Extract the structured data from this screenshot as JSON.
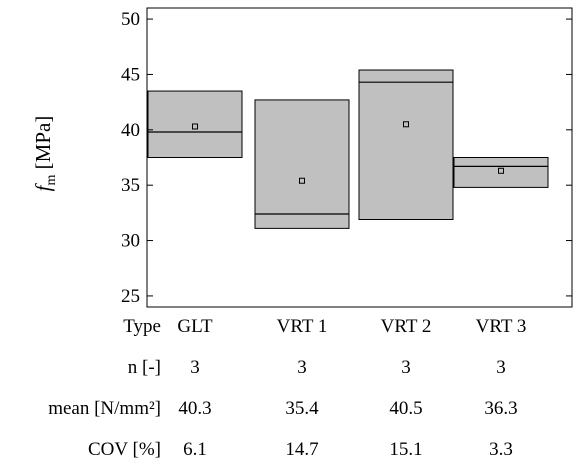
{
  "chart_data": {
    "type": "box",
    "ylabel_symbol": "f",
    "ylabel_subscript": "m",
    "ylabel_unit": "[MPa]",
    "ylim": [
      24,
      51
    ],
    "yticks": [
      25,
      30,
      35,
      40,
      45,
      50
    ],
    "categories": [
      "GLT",
      "VRT 1",
      "VRT 2",
      "VRT 3"
    ],
    "boxes": [
      {
        "min": 37.5,
        "median": 39.8,
        "max": 43.5,
        "mean": 40.3
      },
      {
        "min": 31.1,
        "median": 32.4,
        "max": 42.7,
        "mean": 35.4
      },
      {
        "min": 31.9,
        "median": 44.3,
        "max": 45.4,
        "mean": 40.5
      },
      {
        "min": 34.8,
        "median": 36.7,
        "max": 37.5,
        "mean": 36.3
      }
    ],
    "box_fill": "#c0c0c0",
    "table": {
      "row_labels": [
        "Type",
        "n [-]",
        "mean [N/mm²]",
        "COV [%]"
      ],
      "n": [
        "3",
        "3",
        "3",
        "3"
      ],
      "mean": [
        "40.3",
        "35.4",
        "40.5",
        "36.3"
      ],
      "cov": [
        "6.1",
        "14.7",
        "15.1",
        "3.3"
      ]
    }
  }
}
